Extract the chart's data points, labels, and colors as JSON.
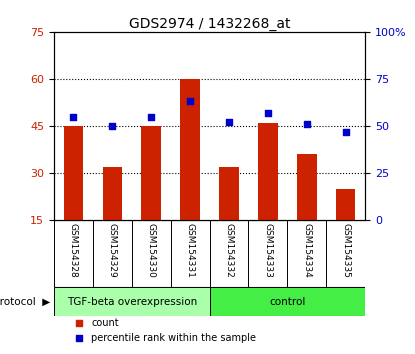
{
  "title": "GDS2974 / 1432268_at",
  "samples": [
    "GSM154328",
    "GSM154329",
    "GSM154330",
    "GSM154331",
    "GSM154332",
    "GSM154333",
    "GSM154334",
    "GSM154335"
  ],
  "red_bars": [
    45,
    32,
    45,
    60,
    32,
    46,
    36,
    25
  ],
  "blue_dots_pct": [
    55,
    50,
    55,
    63,
    52,
    57,
    51,
    47
  ],
  "ylim_left": [
    15,
    75
  ],
  "yticks_left": [
    15,
    30,
    45,
    60,
    75
  ],
  "ylim_right": [
    0,
    100
  ],
  "yticks_right": [
    0,
    25,
    50,
    75,
    100
  ],
  "ytick_labels_right": [
    "0",
    "25",
    "50",
    "75",
    "100%"
  ],
  "bar_color": "#cc2200",
  "dot_color": "#0000cc",
  "protocol_groups": [
    {
      "label": "TGF-beta overexpression",
      "start": 0,
      "end": 4,
      "color": "#aaffaa"
    },
    {
      "label": "control",
      "start": 4,
      "end": 8,
      "color": "#44ee44"
    }
  ],
  "protocol_label": "protocol",
  "legend_items": [
    {
      "label": "count",
      "color": "#cc2200"
    },
    {
      "label": "percentile rank within the sample",
      "color": "#0000cc"
    }
  ],
  "bar_width": 0.5,
  "plot_bg": "#ffffff",
  "sample_label_bg": "#cccccc",
  "grid_dotted_at": [
    30,
    45,
    60
  ]
}
